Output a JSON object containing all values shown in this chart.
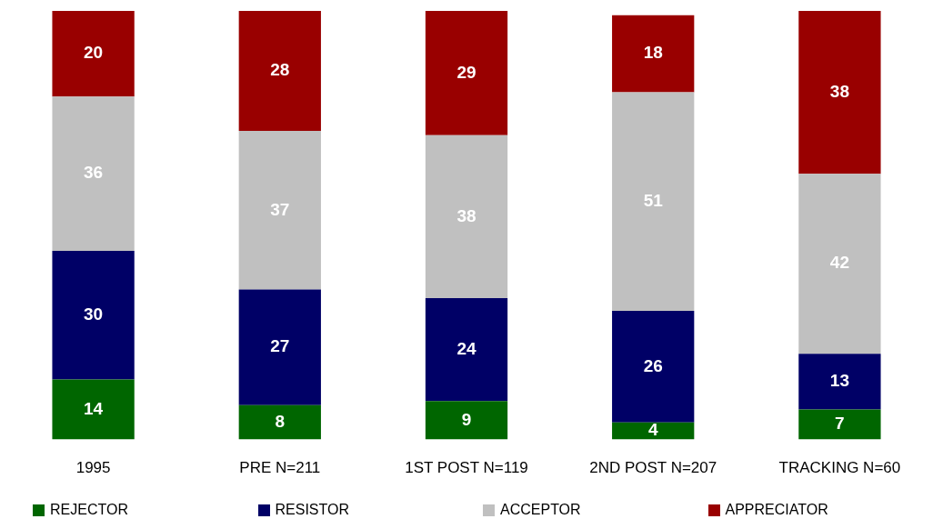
{
  "chart_data": {
    "type": "bar",
    "stacked": true,
    "data_labels": true,
    "legend": "bottom",
    "grid": false,
    "tick_labels": "x",
    "ylim": [
      0,
      100
    ],
    "categories": [
      "1995",
      "PRE N=211",
      "1ST POST N=119",
      "2ND POST N=207",
      "TRACKING N=60"
    ],
    "series": [
      {
        "name": "REJECTOR",
        "color": "#006600",
        "values": [
          14,
          8,
          9,
          4,
          7
        ]
      },
      {
        "name": "RESISTOR",
        "color": "#000066",
        "values": [
          30,
          27,
          24,
          26,
          13
        ]
      },
      {
        "name": "ACCEPTOR",
        "color": "#c0c0c0",
        "values": [
          36,
          37,
          38,
          51,
          42
        ]
      },
      {
        "name": "APPRECIATOR",
        "color": "#990000",
        "values": [
          20,
          28,
          29,
          18,
          38
        ]
      }
    ]
  }
}
